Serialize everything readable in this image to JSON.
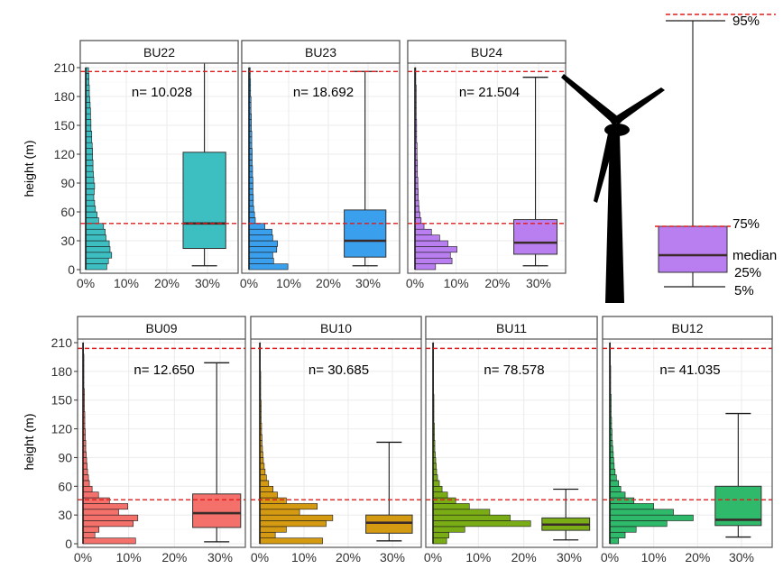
{
  "y_axis_label": "height (m)",
  "y_ticks": [
    "0",
    "30",
    "60",
    "90",
    "120",
    "150",
    "180",
    "210"
  ],
  "x_ticks": [
    "0%",
    "10%",
    "20%",
    "30%"
  ],
  "legend": {
    "labels": {
      "p95": "95%",
      "p75": "75%",
      "median": "median",
      "p25": "25%",
      "p5": "5%"
    }
  },
  "colors": {
    "line_red": "#e01b1b",
    "BU22": "#3dbfc2",
    "BU23": "#3aa0ee",
    "BU24": "#b97ff0",
    "BU09": "#f4706a",
    "BU10": "#d49a12",
    "BU11": "#7aad15",
    "BU12": "#2fb96a",
    "legend_box": "#b97ff0"
  },
  "chart_data": [
    {
      "type": "histogram+boxplot",
      "title": "BU22",
      "n_label": "n= 10.028",
      "ylim": [
        0,
        210
      ],
      "xlim_pct": [
        0,
        30
      ],
      "bin_width_m": 6,
      "hist_pct": [
        5.2,
        5.6,
        6.4,
        6.0,
        5.8,
        5.0,
        4.8,
        4.4,
        3.2,
        2.8,
        2.4,
        2.2,
        2.0,
        2.1,
        2.2,
        2.0,
        1.9,
        1.8,
        1.8,
        1.7,
        1.7,
        1.6,
        1.5,
        1.5,
        1.3,
        1.3,
        1.2,
        1.2,
        1.1,
        1.0,
        0.9,
        0.9,
        0.8,
        0.8,
        0.7
      ],
      "box": {
        "p5": 4,
        "p25": 22,
        "median": 48,
        "p75": 122,
        "p95": 223
      },
      "p95_line": 206,
      "p75_line": 48
    },
    {
      "type": "histogram+boxplot",
      "title": "BU23",
      "n_label": "n= 18.692",
      "ylim": [
        0,
        210
      ],
      "xlim_pct": [
        0,
        30
      ],
      "bin_width_m": 6,
      "hist_pct": [
        9.8,
        6.2,
        6.0,
        7.0,
        7.2,
        6.0,
        5.8,
        4.0,
        1.6,
        1.4,
        1.2,
        1.1,
        1.1,
        1.0,
        1.0,
        1.0,
        0.9,
        0.9,
        0.8,
        0.8,
        0.8,
        0.7,
        0.7,
        0.7,
        0.6,
        0.6,
        0.6,
        0.5,
        0.5,
        0.5,
        0.4,
        0.4,
        0.4,
        0.3,
        0.3
      ],
      "box": {
        "p5": 4,
        "p25": 13,
        "median": 30,
        "p75": 62,
        "p95": 206
      },
      "p95_line": 206,
      "p75_line": 48
    },
    {
      "type": "histogram+boxplot",
      "title": "BU24",
      "n_label": "n= 21.504",
      "ylim": [
        0,
        210
      ],
      "xlim_pct": [
        0,
        30
      ],
      "bin_width_m": 6,
      "hist_pct": [
        5.0,
        9.0,
        8.6,
        10.2,
        8.0,
        6.0,
        4.0,
        2.2,
        1.5,
        1.2,
        1.0,
        0.9,
        0.8,
        0.8,
        0.7,
        0.7,
        0.6,
        0.6,
        0.6,
        0.5,
        0.5,
        0.5,
        0.4,
        0.4,
        0.4,
        0.4,
        0.3,
        0.3,
        0.3,
        0.3,
        0.3,
        0.3,
        0.2,
        0.2,
        0.2
      ],
      "box": {
        "p5": 4,
        "p25": 16,
        "median": 28,
        "p75": 52,
        "p95": 200
      },
      "p95_line": 206,
      "p75_line": 48
    },
    {
      "type": "histogram+boxplot",
      "title": "BU09",
      "n_label": "n= 12.650",
      "ylim": [
        0,
        210
      ],
      "xlim_pct": [
        0,
        30
      ],
      "bin_width_m": 6,
      "hist_pct": [
        11.5,
        2.6,
        3.5,
        11.0,
        12.0,
        7.8,
        9.8,
        5.8,
        3.4,
        2.0,
        1.4,
        1.2,
        1.0,
        0.9,
        0.8,
        0.7,
        0.6,
        0.6,
        0.5,
        0.5,
        0.4,
        0.4,
        0.4,
        0.3,
        0.3,
        0.3,
        0.3,
        0.2,
        0.2,
        0.2,
        0.2,
        0.2,
        0.2,
        0.1,
        0.1
      ],
      "box": {
        "p5": 2,
        "p25": 17,
        "median": 32,
        "p75": 52,
        "p95": 189
      },
      "p95_line": 204,
      "p75_line": 46
    },
    {
      "type": "histogram+boxplot",
      "title": "BU10",
      "n_label": "n= 30.685",
      "ylim": [
        0,
        210
      ],
      "xlim_pct": [
        0,
        30
      ],
      "bin_width_m": 6,
      "hist_pct": [
        14.2,
        3.5,
        6.0,
        15.0,
        16.5,
        9.0,
        13.0,
        6.0,
        4.0,
        3.0,
        2.0,
        1.5,
        1.2,
        1.0,
        0.8,
        0.7,
        0.6,
        0.5,
        0.5,
        0.4,
        0.4,
        0.3,
        0.3,
        0.3,
        0.3,
        0.2,
        0.2,
        0.2,
        0.2,
        0.2,
        0.1,
        0.1,
        0.1,
        0.1,
        0.1
      ],
      "box": {
        "p5": 3,
        "p25": 11,
        "median": 22,
        "p75": 30,
        "p95": 106
      },
      "p95_line": 204,
      "p75_line": 46
    },
    {
      "type": "histogram+boxplot",
      "title": "BU11",
      "n_label": "n= 78.578",
      "ylim": [
        0,
        210
      ],
      "xlim_pct": [
        0,
        30
      ],
      "bin_width_m": 6,
      "hist_pct": [
        3.0,
        3.5,
        7.0,
        21.5,
        17.0,
        12.5,
        8.0,
        5.0,
        3.2,
        2.0,
        1.4,
        1.0,
        0.8,
        0.7,
        0.6,
        0.5,
        0.4,
        0.4,
        0.3,
        0.3,
        0.3,
        0.2,
        0.2,
        0.2,
        0.2,
        0.2,
        0.1,
        0.1,
        0.1,
        0.1,
        0.1,
        0.1,
        0.1,
        0.1,
        0.1
      ],
      "box": {
        "p5": 4,
        "p25": 14,
        "median": 20,
        "p75": 27,
        "p95": 57
      },
      "p95_line": 204,
      "p75_line": 46
    },
    {
      "type": "histogram+boxplot",
      "title": "BU12",
      "n_label": "n= 41.035",
      "ylim": [
        0,
        210
      ],
      "xlim_pct": [
        0,
        30
      ],
      "bin_width_m": 6,
      "hist_pct": [
        2.0,
        3.5,
        6.0,
        13.0,
        19.0,
        14.5,
        10.0,
        5.5,
        3.5,
        2.5,
        2.0,
        1.5,
        1.2,
        1.0,
        0.9,
        0.8,
        0.7,
        0.6,
        0.5,
        0.5,
        0.4,
        0.4,
        0.3,
        0.3,
        0.3,
        0.3,
        0.2,
        0.2,
        0.2,
        0.2,
        0.2,
        0.1,
        0.1,
        0.1,
        0.1
      ],
      "box": {
        "p5": 7,
        "p25": 19,
        "median": 25,
        "p75": 60,
        "p95": 136
      },
      "p95_line": 204,
      "p75_line": 46
    }
  ]
}
